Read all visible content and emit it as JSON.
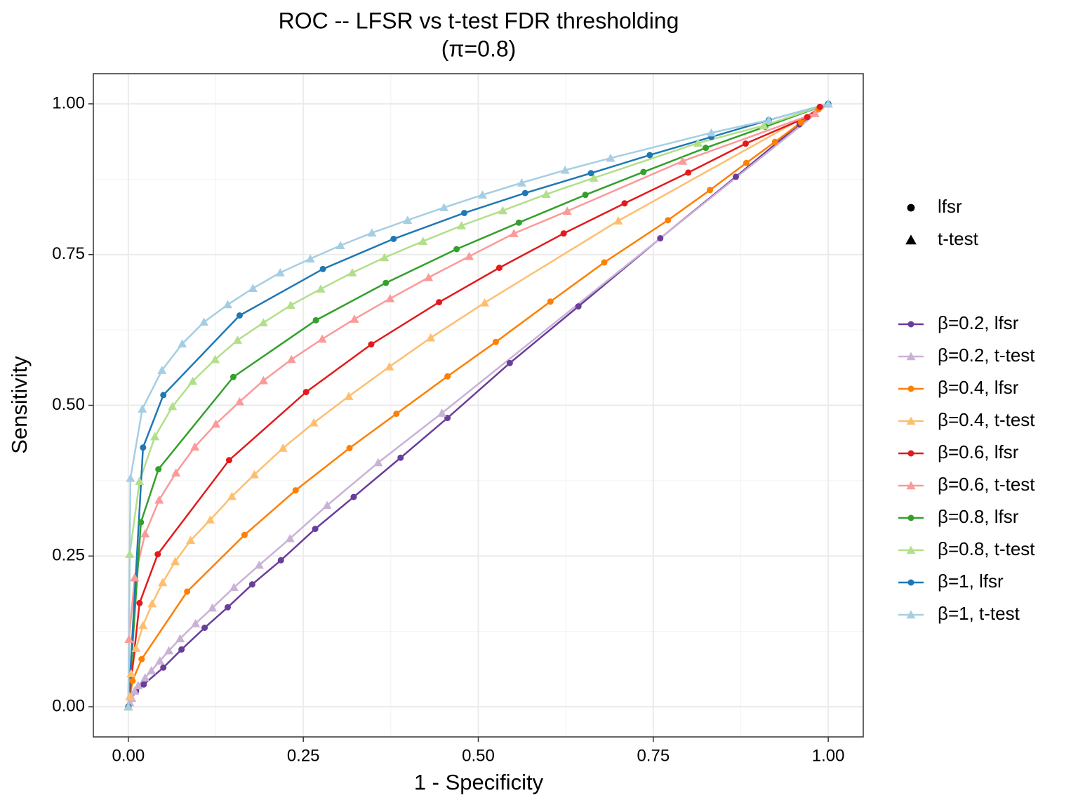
{
  "chart_data": {
    "type": "line",
    "title": "ROC -- LFSR vs t-test FDR thresholding",
    "subtitle": "(π=0.8)",
    "x_label": "1 - Specificity",
    "y_label": "Sensitivity",
    "xlim": [
      -0.05,
      1.05
    ],
    "ylim": [
      -0.05,
      1.05
    ],
    "xticks": [
      {
        "value": 0,
        "label": "0.00"
      },
      {
        "value": 0.25,
        "label": "0.25"
      },
      {
        "value": 0.5,
        "label": "0.50"
      },
      {
        "value": 0.75,
        "label": "0.75"
      },
      {
        "value": 1,
        "label": "1.00"
      }
    ],
    "yticks": [
      {
        "value": 0,
        "label": "0.00"
      },
      {
        "value": 0.25,
        "label": "0.25"
      },
      {
        "value": 0.5,
        "label": "0.50"
      },
      {
        "value": 0.75,
        "label": "0.75"
      },
      {
        "value": 1,
        "label": "1.00"
      }
    ],
    "grid": true,
    "legend": "right",
    "shape_legend": [
      {
        "name": "lfsr",
        "marker": "circle"
      },
      {
        "name": "t-test",
        "marker": "triangle"
      }
    ],
    "series": [
      {
        "name": "β=0.2, lfsr",
        "color": "#6a3d9a",
        "marker": "circle",
        "x": [
          0,
          0.004,
          0.011,
          0.022,
          0.05,
          0.076,
          0.109,
          0.142,
          0.177,
          0.218,
          0.267,
          0.322,
          0.389,
          0.456,
          0.545,
          0.643,
          0.76,
          0.868,
          0.959,
          1
        ],
        "values": [
          0,
          0.013,
          0.026,
          0.037,
          0.065,
          0.095,
          0.131,
          0.165,
          0.203,
          0.243,
          0.295,
          0.348,
          0.413,
          0.479,
          0.57,
          0.664,
          0.777,
          0.879,
          0.966,
          1
        ]
      },
      {
        "name": "β=0.2, t-test",
        "color": "#cab2d6",
        "marker": "triangle",
        "x": [
          0,
          0.002,
          0.005,
          0.009,
          0.014,
          0.024,
          0.033,
          0.045,
          0.058,
          0.074,
          0.096,
          0.12,
          0.151,
          0.187,
          0.231,
          0.284,
          0.357,
          0.448,
          1
        ],
        "values": [
          0,
          0.007,
          0.014,
          0.026,
          0.035,
          0.048,
          0.06,
          0.076,
          0.093,
          0.113,
          0.138,
          0.164,
          0.198,
          0.235,
          0.279,
          0.334,
          0.405,
          0.487,
          1
        ]
      },
      {
        "name": "β=0.4, lfsr",
        "color": "#ff7f00",
        "marker": "circle",
        "x": [
          0,
          0.006,
          0.019,
          0.084,
          0.166,
          0.239,
          0.316,
          0.383,
          0.456,
          0.525,
          0.603,
          0.68,
          0.771,
          0.831,
          0.883,
          0.924,
          0.961,
          0.986,
          1
        ],
        "values": [
          0,
          0.043,
          0.079,
          0.191,
          0.285,
          0.359,
          0.429,
          0.486,
          0.548,
          0.605,
          0.672,
          0.737,
          0.807,
          0.857,
          0.902,
          0.937,
          0.969,
          0.991,
          1
        ]
      },
      {
        "name": "β=0.4, t-test",
        "color": "#fdbf6f",
        "marker": "triangle",
        "x": [
          0,
          0.002,
          0.004,
          0.011,
          0.021,
          0.034,
          0.049,
          0.067,
          0.089,
          0.117,
          0.148,
          0.18,
          0.221,
          0.265,
          0.315,
          0.373,
          0.432,
          0.509,
          0.7,
          1
        ],
        "values": [
          0,
          0.017,
          0.055,
          0.097,
          0.135,
          0.171,
          0.206,
          0.241,
          0.276,
          0.31,
          0.349,
          0.385,
          0.429,
          0.471,
          0.515,
          0.564,
          0.612,
          0.67,
          0.806,
          1
        ]
      },
      {
        "name": "β=0.6, lfsr",
        "color": "#e31a1c",
        "marker": "circle",
        "x": [
          0,
          0.016,
          0.042,
          0.144,
          0.254,
          0.347,
          0.444,
          0.53,
          0.622,
          0.709,
          0.8,
          0.882,
          0.97,
          0.988,
          1
        ],
        "values": [
          0,
          0.172,
          0.253,
          0.409,
          0.522,
          0.601,
          0.671,
          0.728,
          0.785,
          0.835,
          0.886,
          0.934,
          0.978,
          0.995,
          1
        ]
      },
      {
        "name": "β=0.6, t-test",
        "color": "#fb9a99",
        "marker": "triangle",
        "x": [
          0,
          0.001,
          0.009,
          0.024,
          0.044,
          0.068,
          0.095,
          0.125,
          0.159,
          0.193,
          0.233,
          0.277,
          0.323,
          0.374,
          0.429,
          0.487,
          0.551,
          0.627,
          0.792,
          0.981,
          1
        ],
        "values": [
          0,
          0.112,
          0.214,
          0.287,
          0.343,
          0.388,
          0.431,
          0.469,
          0.506,
          0.541,
          0.576,
          0.61,
          0.643,
          0.677,
          0.712,
          0.747,
          0.785,
          0.822,
          0.905,
          0.984,
          1
        ]
      },
      {
        "name": "β=0.8, lfsr",
        "color": "#33a02c",
        "marker": "circle",
        "x": [
          0,
          0.018,
          0.043,
          0.15,
          0.268,
          0.368,
          0.469,
          0.558,
          0.653,
          0.736,
          0.825,
          0.91,
          1
        ],
        "values": [
          0,
          0.306,
          0.394,
          0.547,
          0.641,
          0.703,
          0.759,
          0.803,
          0.849,
          0.887,
          0.927,
          0.962,
          1
        ]
      },
      {
        "name": "β=0.8, t-test",
        "color": "#b2df8a",
        "marker": "triangle",
        "x": [
          0,
          0.002,
          0.016,
          0.038,
          0.063,
          0.092,
          0.124,
          0.156,
          0.193,
          0.232,
          0.275,
          0.32,
          0.366,
          0.421,
          0.476,
          0.535,
          0.597,
          0.665,
          0.814,
          0.908,
          1
        ],
        "values": [
          0,
          0.253,
          0.374,
          0.448,
          0.498,
          0.54,
          0.576,
          0.608,
          0.637,
          0.666,
          0.693,
          0.72,
          0.745,
          0.772,
          0.798,
          0.823,
          0.85,
          0.877,
          0.935,
          0.964,
          1
        ]
      },
      {
        "name": "β=1, lfsr",
        "color": "#1f78b4",
        "marker": "circle",
        "x": [
          0,
          0.021,
          0.05,
          0.159,
          0.278,
          0.379,
          0.48,
          0.567,
          0.661,
          0.745,
          0.833,
          0.915,
          1
        ],
        "values": [
          0,
          0.43,
          0.517,
          0.649,
          0.726,
          0.776,
          0.819,
          0.852,
          0.885,
          0.915,
          0.945,
          0.973,
          1
        ]
      },
      {
        "name": "β=1, t-test",
        "color": "#a6cee3",
        "marker": "triangle",
        "x": [
          0,
          0.003,
          0.02,
          0.048,
          0.077,
          0.108,
          0.142,
          0.178,
          0.217,
          0.26,
          0.303,
          0.348,
          0.399,
          0.451,
          0.506,
          0.562,
          0.624,
          0.689,
          0.833,
          0.915,
          1
        ],
        "values": [
          0,
          0.379,
          0.494,
          0.558,
          0.602,
          0.638,
          0.667,
          0.694,
          0.72,
          0.743,
          0.765,
          0.786,
          0.807,
          0.828,
          0.849,
          0.869,
          0.89,
          0.91,
          0.952,
          0.973,
          1
        ]
      }
    ]
  }
}
